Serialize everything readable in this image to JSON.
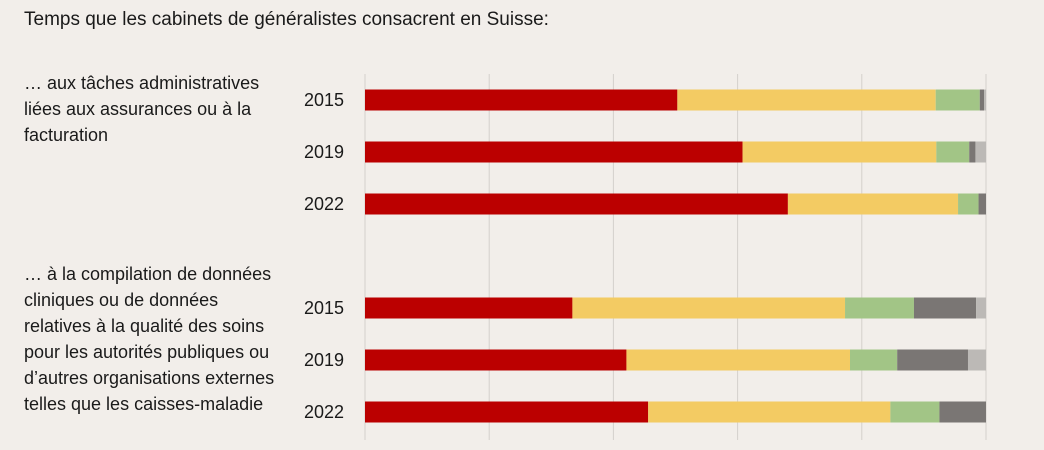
{
  "title": "Temps que les cabinets de généralistes consacrent en Suisse:",
  "colors": {
    "background": "#f2eeea",
    "grid": "#d4d0cc",
    "segments": [
      "#bb0000",
      "#f3cb63",
      "#a2c586",
      "#7a7674",
      "#bcb9b6"
    ]
  },
  "chart_data": {
    "type": "bar",
    "orientation": "horizontal",
    "stacked": true,
    "normalized_percent": true,
    "xlim": [
      0,
      100
    ],
    "grid": true,
    "legend": "none",
    "groups": [
      {
        "label": "… aux tâches administratives liées aux assurances ou à la facturation",
        "bars": [
          {
            "year": "2015",
            "values": [
              50.3,
              41.6,
              7.1,
              0.7,
              0.3
            ]
          },
          {
            "year": "2019",
            "values": [
              60.8,
              31.2,
              5.3,
              1.0,
              1.7
            ]
          },
          {
            "year": "2022",
            "values": [
              68.1,
              27.4,
              3.3,
              1.2,
              0.0
            ]
          }
        ]
      },
      {
        "label": "… à la compilation de données cliniques ou de données relatives à la qualité des soins pour les autorités publiques ou d’autres organisations externes telles que les caisses-maladie",
        "bars": [
          {
            "year": "2015",
            "values": [
              33.4,
              43.9,
              11.1,
              10.0,
              1.6
            ]
          },
          {
            "year": "2019",
            "values": [
              42.1,
              36.0,
              7.6,
              11.4,
              2.9
            ]
          },
          {
            "year": "2022",
            "values": [
              45.6,
              39.0,
              7.9,
              7.5,
              0.0
            ]
          }
        ]
      }
    ]
  }
}
